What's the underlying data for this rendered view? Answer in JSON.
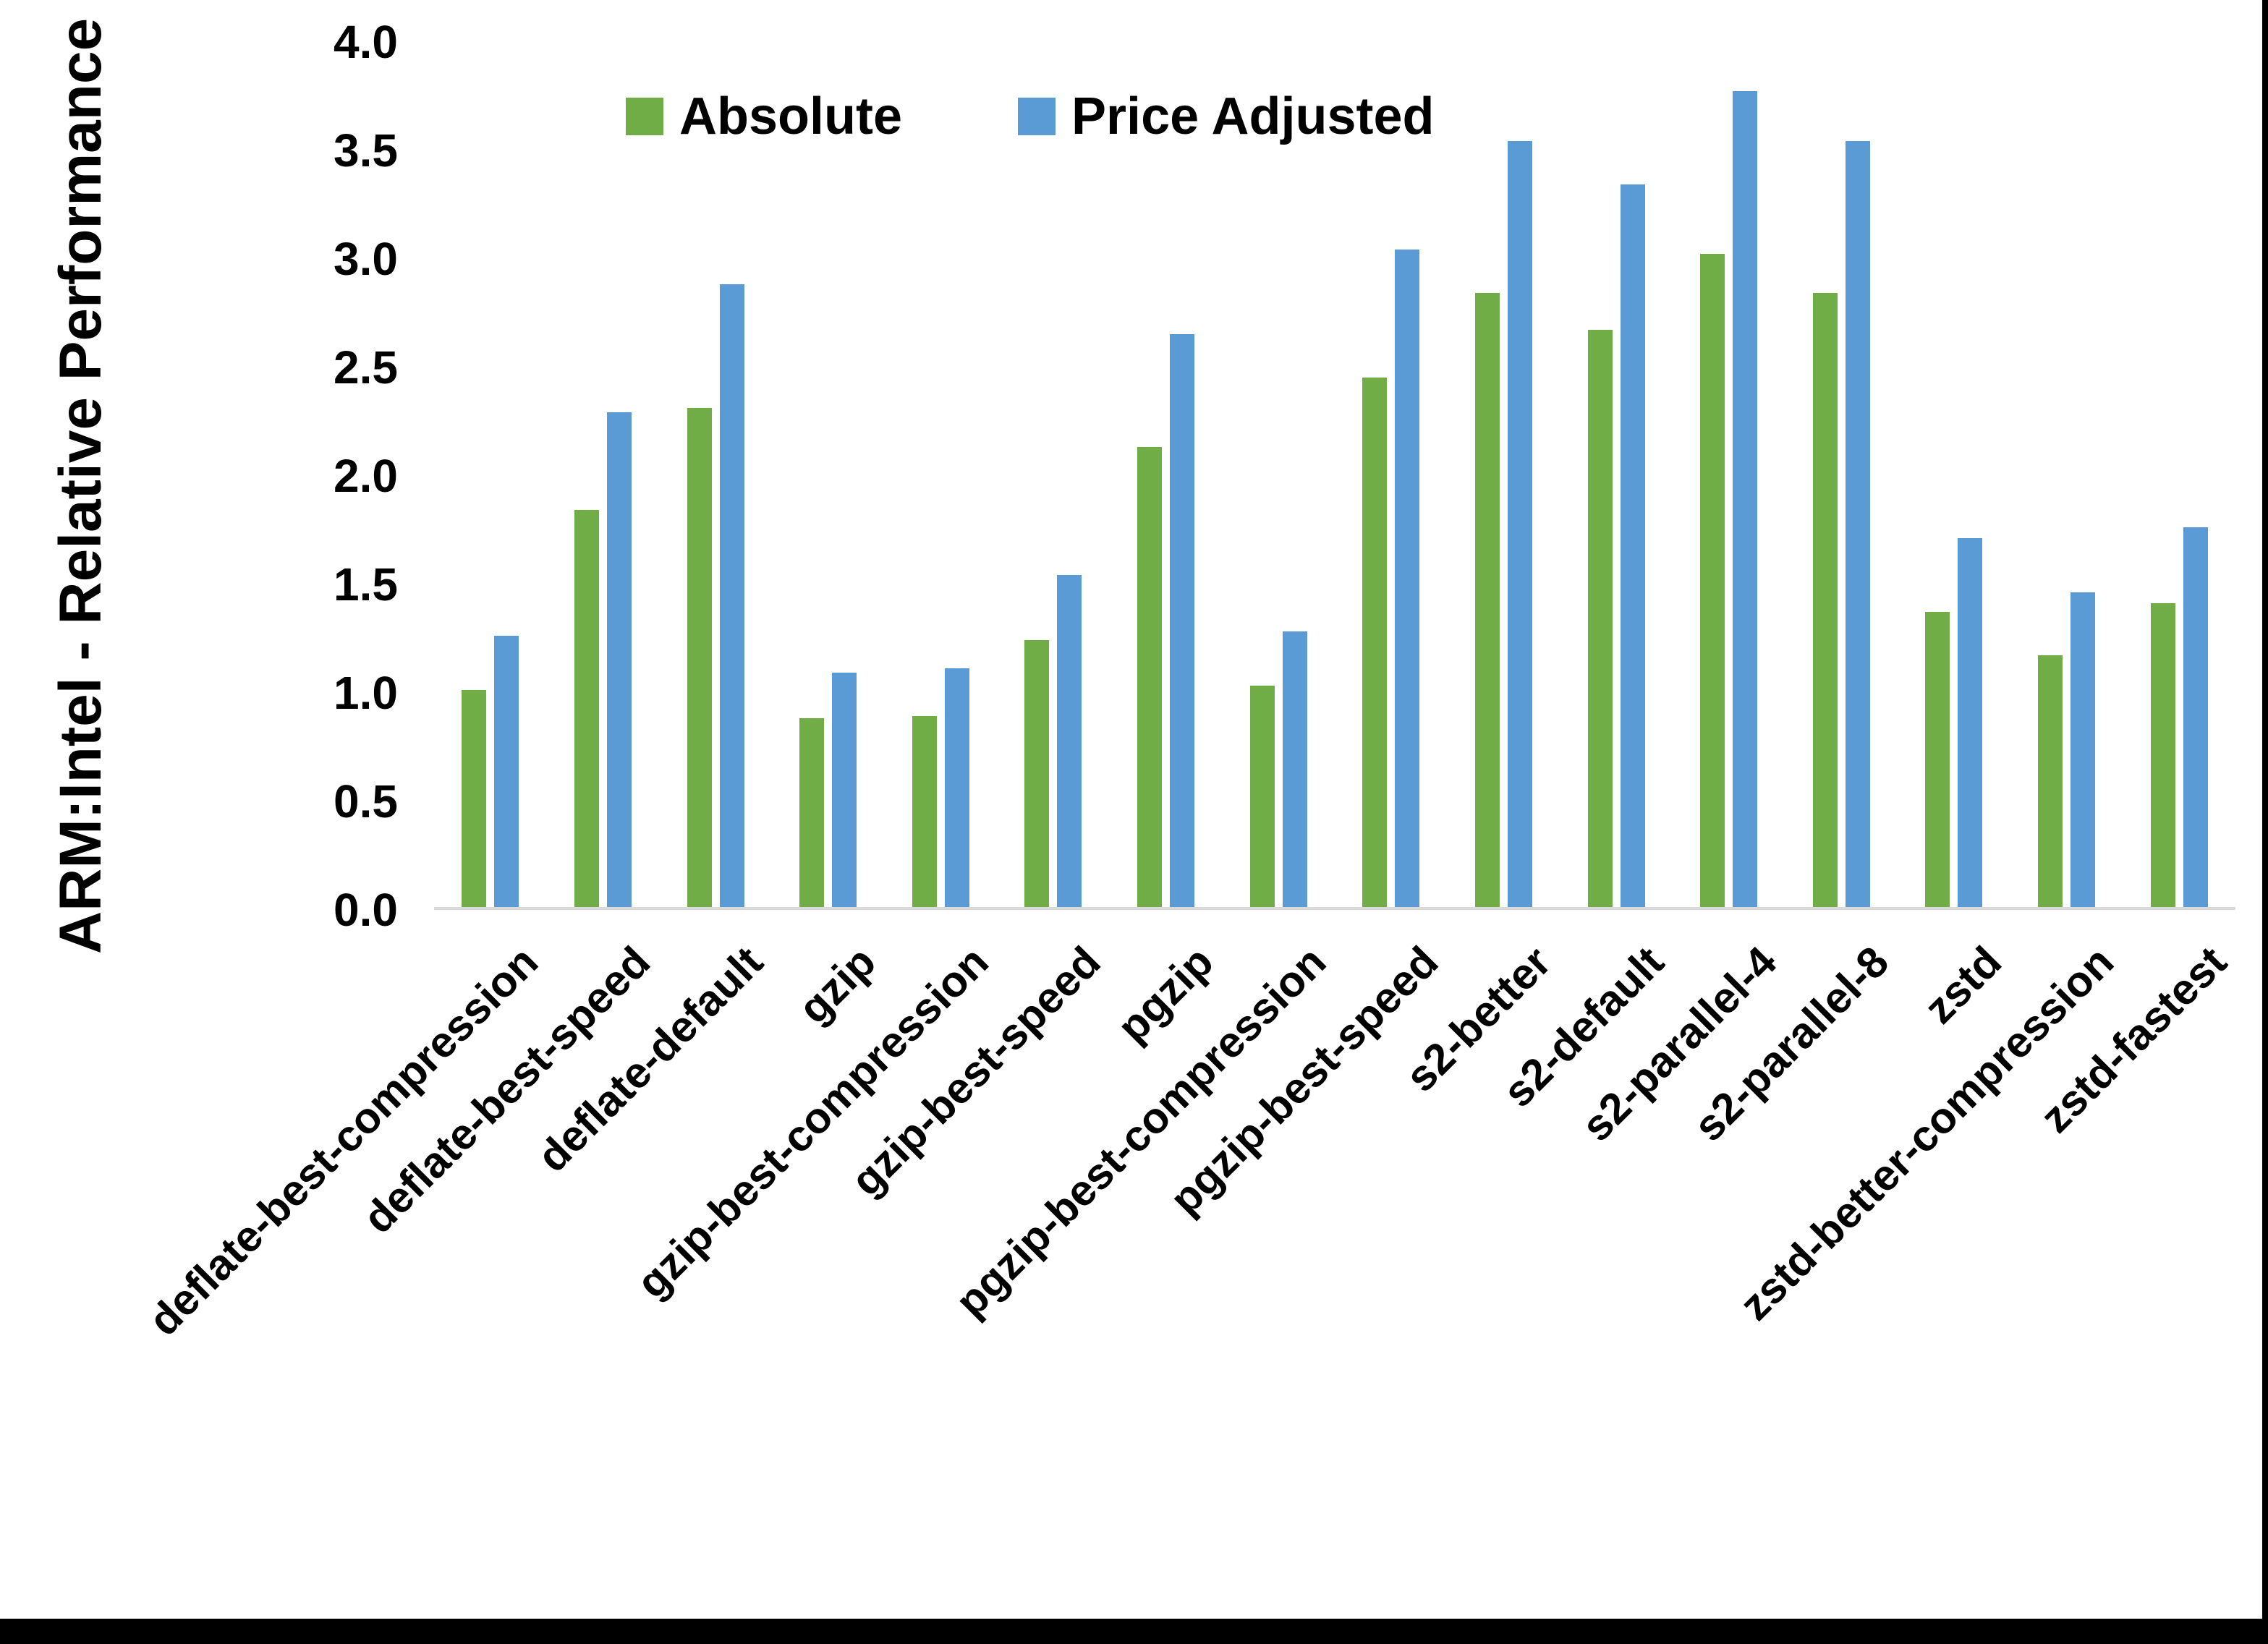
{
  "figure": {
    "background": "#ffffff",
    "border_color": "#000000",
    "axis_line_color": "#d9d9d9",
    "text_color": "#000000"
  },
  "chart_data": {
    "type": "bar",
    "title": "",
    "xlabel": "",
    "ylabel": "ARM:Intel - Relative Performance",
    "ylim": [
      0.0,
      4.0
    ],
    "ytick_step": 0.5,
    "ytick_labels": [
      "0.0",
      "0.5",
      "1.0",
      "1.5",
      "2.0",
      "2.5",
      "3.0",
      "3.5",
      "4.0"
    ],
    "grid": false,
    "legend_position": "top-center",
    "categories": [
      "deflate-best-compression",
      "deflate-best-speed",
      "deflate-default",
      "gzip",
      "gzip-best-compression",
      "gzip-best-speed",
      "pgzip",
      "pgzip-best-compression",
      "pgzip-best-speed",
      "s2-better",
      "s2-default",
      "s2-parallel-4",
      "s2-parallel-8",
      "zstd",
      "zstd-better-compression",
      "zstd-fastest"
    ],
    "series": [
      {
        "name": "Absolute",
        "color": "#70AD47",
        "values": [
          1.0,
          1.83,
          2.3,
          0.87,
          0.88,
          1.23,
          2.12,
          1.02,
          2.44,
          2.83,
          2.66,
          3.01,
          2.83,
          1.36,
          1.16,
          1.4
        ]
      },
      {
        "name": "Price Adjusted",
        "color": "#5B9BD5",
        "values": [
          1.25,
          2.28,
          2.87,
          1.08,
          1.1,
          1.53,
          2.64,
          1.27,
          3.03,
          3.53,
          3.33,
          3.76,
          3.53,
          1.7,
          1.45,
          1.75
        ]
      }
    ]
  }
}
